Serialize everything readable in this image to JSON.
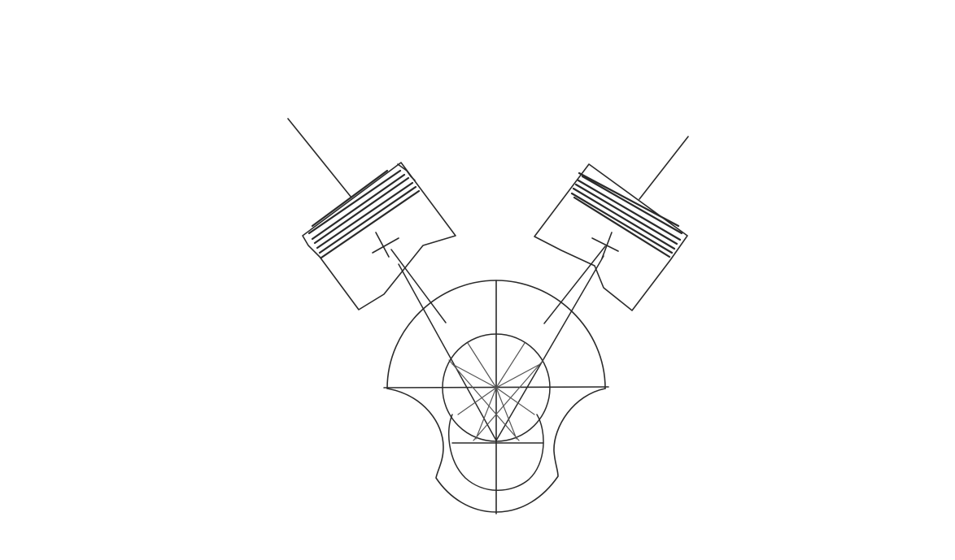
{
  "drawing": {
    "subject": "v-engine-pistons-crankshaft-sketch",
    "style": "pencil-line-sketch",
    "background_color": "#ffffff",
    "ink_color": "#2a2a2a",
    "light_ink_color": "#555555",
    "labels": []
  }
}
